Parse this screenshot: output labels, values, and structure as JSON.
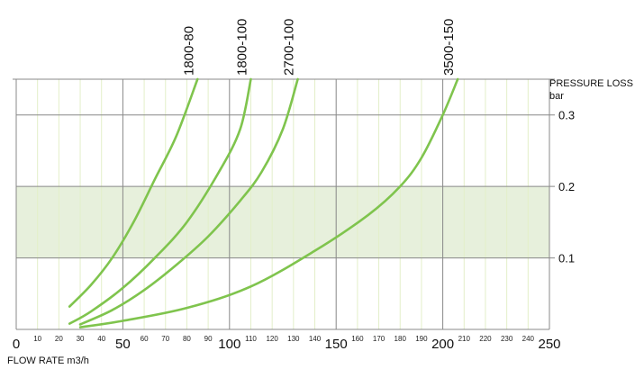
{
  "chart_data": {
    "type": "line",
    "xlabel": "FLOW RATE m3/h",
    "ylabel": "PRESSURE LOSS",
    "ylabel_unit": "bar",
    "xlim": [
      0,
      250
    ],
    "ylim": [
      0,
      0.35
    ],
    "x_major_ticks": [
      0,
      50,
      100,
      150,
      200,
      250
    ],
    "x_minor_ticks": [
      10,
      20,
      30,
      40,
      60,
      70,
      80,
      90,
      110,
      120,
      130,
      140,
      160,
      170,
      180,
      190,
      210,
      220,
      230,
      240
    ],
    "y_ticks": [
      {
        "value": 0.1,
        "label": "0.1"
      },
      {
        "value": 0.2,
        "label": "0.2"
      },
      {
        "value": 0.3,
        "label": "0.3"
      }
    ],
    "grid": true,
    "highlight_band": {
      "y_from": 0.1,
      "y_to": 0.2,
      "color": "#e7f0dc"
    },
    "line_color": "#7fc44d",
    "minor_grid_color": "#e3efc9",
    "major_grid_color": "#888888",
    "series": [
      {
        "name": "1800-80",
        "x": [
          25,
          35,
          45,
          55,
          65,
          75,
          85
        ],
        "y": [
          0.032,
          0.062,
          0.1,
          0.15,
          0.21,
          0.27,
          0.35
        ]
      },
      {
        "name": "1800-100",
        "x": [
          25,
          35,
          50,
          65,
          80,
          95,
          105,
          110
        ],
        "y": [
          0.008,
          0.025,
          0.058,
          0.1,
          0.15,
          0.22,
          0.28,
          0.35
        ]
      },
      {
        "name": "2700-100",
        "x": [
          30,
          45,
          60,
          75,
          90,
          105,
          115,
          125,
          132
        ],
        "y": [
          0.007,
          0.027,
          0.055,
          0.09,
          0.13,
          0.18,
          0.22,
          0.28,
          0.35
        ]
      },
      {
        "name": "3500-150",
        "x": [
          30,
          50,
          80,
          110,
          140,
          165,
          180,
          190,
          200,
          207
        ],
        "y": [
          0.003,
          0.012,
          0.03,
          0.06,
          0.11,
          0.16,
          0.2,
          0.24,
          0.3,
          0.35
        ]
      }
    ]
  }
}
